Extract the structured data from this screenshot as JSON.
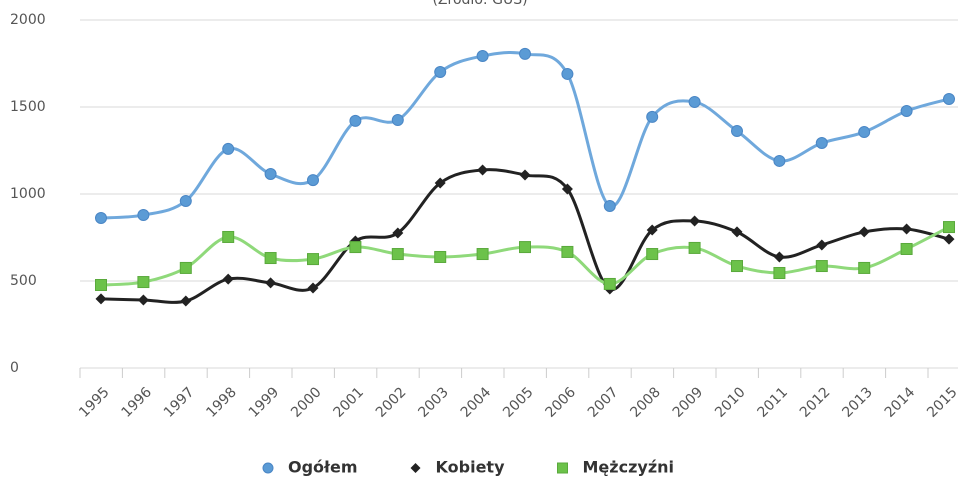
{
  "chart_data": {
    "type": "line",
    "subtitle": "(Źródło: GUS)",
    "categories": [
      "1995",
      "1996",
      "1997",
      "1998",
      "1999",
      "2000",
      "2001",
      "2002",
      "2003",
      "2004",
      "2005",
      "2006",
      "2007",
      "2008",
      "2009",
      "2010",
      "2011",
      "2012",
      "2013",
      "2014",
      "2015"
    ],
    "series": [
      {
        "name": "Ogółem",
        "color": "#6fa8dc",
        "marker": "circle",
        "values": [
          862,
          879,
          960,
          1259,
          1115,
          1080,
          1420,
          1425,
          1701,
          1793,
          1805,
          1690,
          931,
          1443,
          1529,
          1362,
          1190,
          1293,
          1356,
          1477,
          1546
        ]
      },
      {
        "name": "Kobiety",
        "color": "#222222",
        "marker": "diamond",
        "values": [
          397,
          391,
          385,
          511,
          489,
          460,
          730,
          776,
          1063,
          1138,
          1109,
          1029,
          454,
          793,
          845,
          782,
          638,
          707,
          782,
          799,
          741
        ]
      },
      {
        "name": "Mężczyźni",
        "color": "#8fd97a",
        "marker": "square",
        "values": [
          477,
          494,
          575,
          753,
          632,
          626,
          695,
          655,
          638,
          655,
          695,
          667,
          483,
          655,
          690,
          586,
          546,
          586,
          575,
          684,
          810
        ]
      }
    ],
    "ylim": [
      0,
      2000
    ],
    "yticks": [
      0,
      500,
      1000,
      1500,
      2000
    ],
    "grid": true,
    "legend": "bottom"
  }
}
